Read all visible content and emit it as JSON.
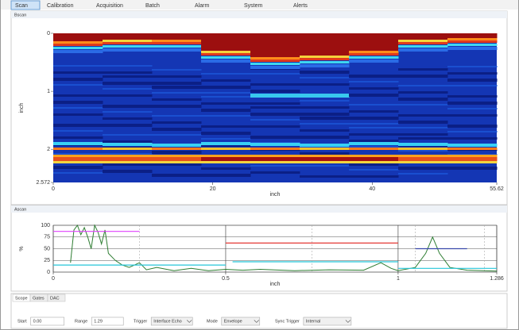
{
  "tabs": [
    "Scan",
    "Calibration",
    "Acquisition",
    "Batch",
    "Alarm",
    "System",
    "Alerts"
  ],
  "chart_data": [
    {
      "type": "heatmap",
      "title": "Bscan",
      "xlabel": "inch",
      "ylabel": "inch",
      "xlim": [
        0,
        55.62
      ],
      "xticks": [
        0,
        20,
        40,
        55.62
      ],
      "ylim": [
        2.572,
        0
      ],
      "yticks": [
        0,
        1,
        2,
        2.572
      ]
    },
    {
      "type": "line",
      "title": "Ascan",
      "xlabel": "inch",
      "ylabel": "%",
      "xlim": [
        0,
        1.286
      ],
      "xticks": [
        0,
        0.5,
        1,
        1.286
      ],
      "ylim": [
        0,
        100
      ],
      "yticks": [
        0,
        25,
        50,
        75,
        100
      ],
      "grid": true,
      "vlines": [
        0.25,
        0.75,
        1.05,
        1.25
      ],
      "series": [
        {
          "color": "#2e7d32",
          "x": [
            0.05,
            0.06,
            0.07,
            0.08,
            0.09,
            0.1,
            0.11,
            0.12,
            0.13,
            0.14,
            0.15,
            0.16,
            0.18,
            0.2,
            0.22,
            0.25,
            0.27,
            0.3,
            0.35,
            0.4,
            0.45,
            0.5,
            0.55,
            0.6,
            0.7,
            0.8,
            0.9,
            0.95,
            0.98,
            1.0,
            1.05,
            1.08,
            1.1,
            1.12,
            1.15,
            1.2,
            1.286
          ],
          "values": [
            20,
            90,
            100,
            80,
            95,
            75,
            50,
            100,
            85,
            60,
            90,
            40,
            25,
            15,
            10,
            20,
            5,
            10,
            3,
            8,
            3,
            6,
            4,
            6,
            3,
            5,
            4,
            20,
            8,
            3,
            10,
            40,
            75,
            40,
            10,
            4,
            2
          ]
        },
        {
          "color": "#e040fb",
          "x": [
            0,
            0.25
          ],
          "values": [
            87,
            87
          ]
        },
        {
          "color": "#e53935",
          "x": [
            0.5,
            1.0
          ],
          "values": [
            62,
            62
          ]
        },
        {
          "color": "#3949ab",
          "x": [
            1.05,
            1.2
          ],
          "values": [
            50,
            50
          ]
        },
        {
          "color": "#26c6da",
          "x": [
            0,
            0.5
          ],
          "values": [
            15,
            15
          ]
        },
        {
          "color": "#26c6da",
          "x": [
            0.52,
            1.0
          ],
          "values": [
            22,
            22
          ]
        },
        {
          "color": "#26c6da",
          "x": [
            1.0,
            1.286
          ],
          "values": [
            8,
            8
          ]
        }
      ]
    }
  ],
  "bottom_tabs": [
    "Scope",
    "Gates",
    "DAC"
  ],
  "controls": [
    {
      "label": "Start",
      "value": "0.00"
    },
    {
      "label": "Range",
      "value": "1.29"
    },
    {
      "label": "Trigger",
      "value": "Interface Echo"
    },
    {
      "label": "Mode",
      "value": "Envelope"
    },
    {
      "label": "Sync Trigger",
      "value": "Internal"
    }
  ]
}
